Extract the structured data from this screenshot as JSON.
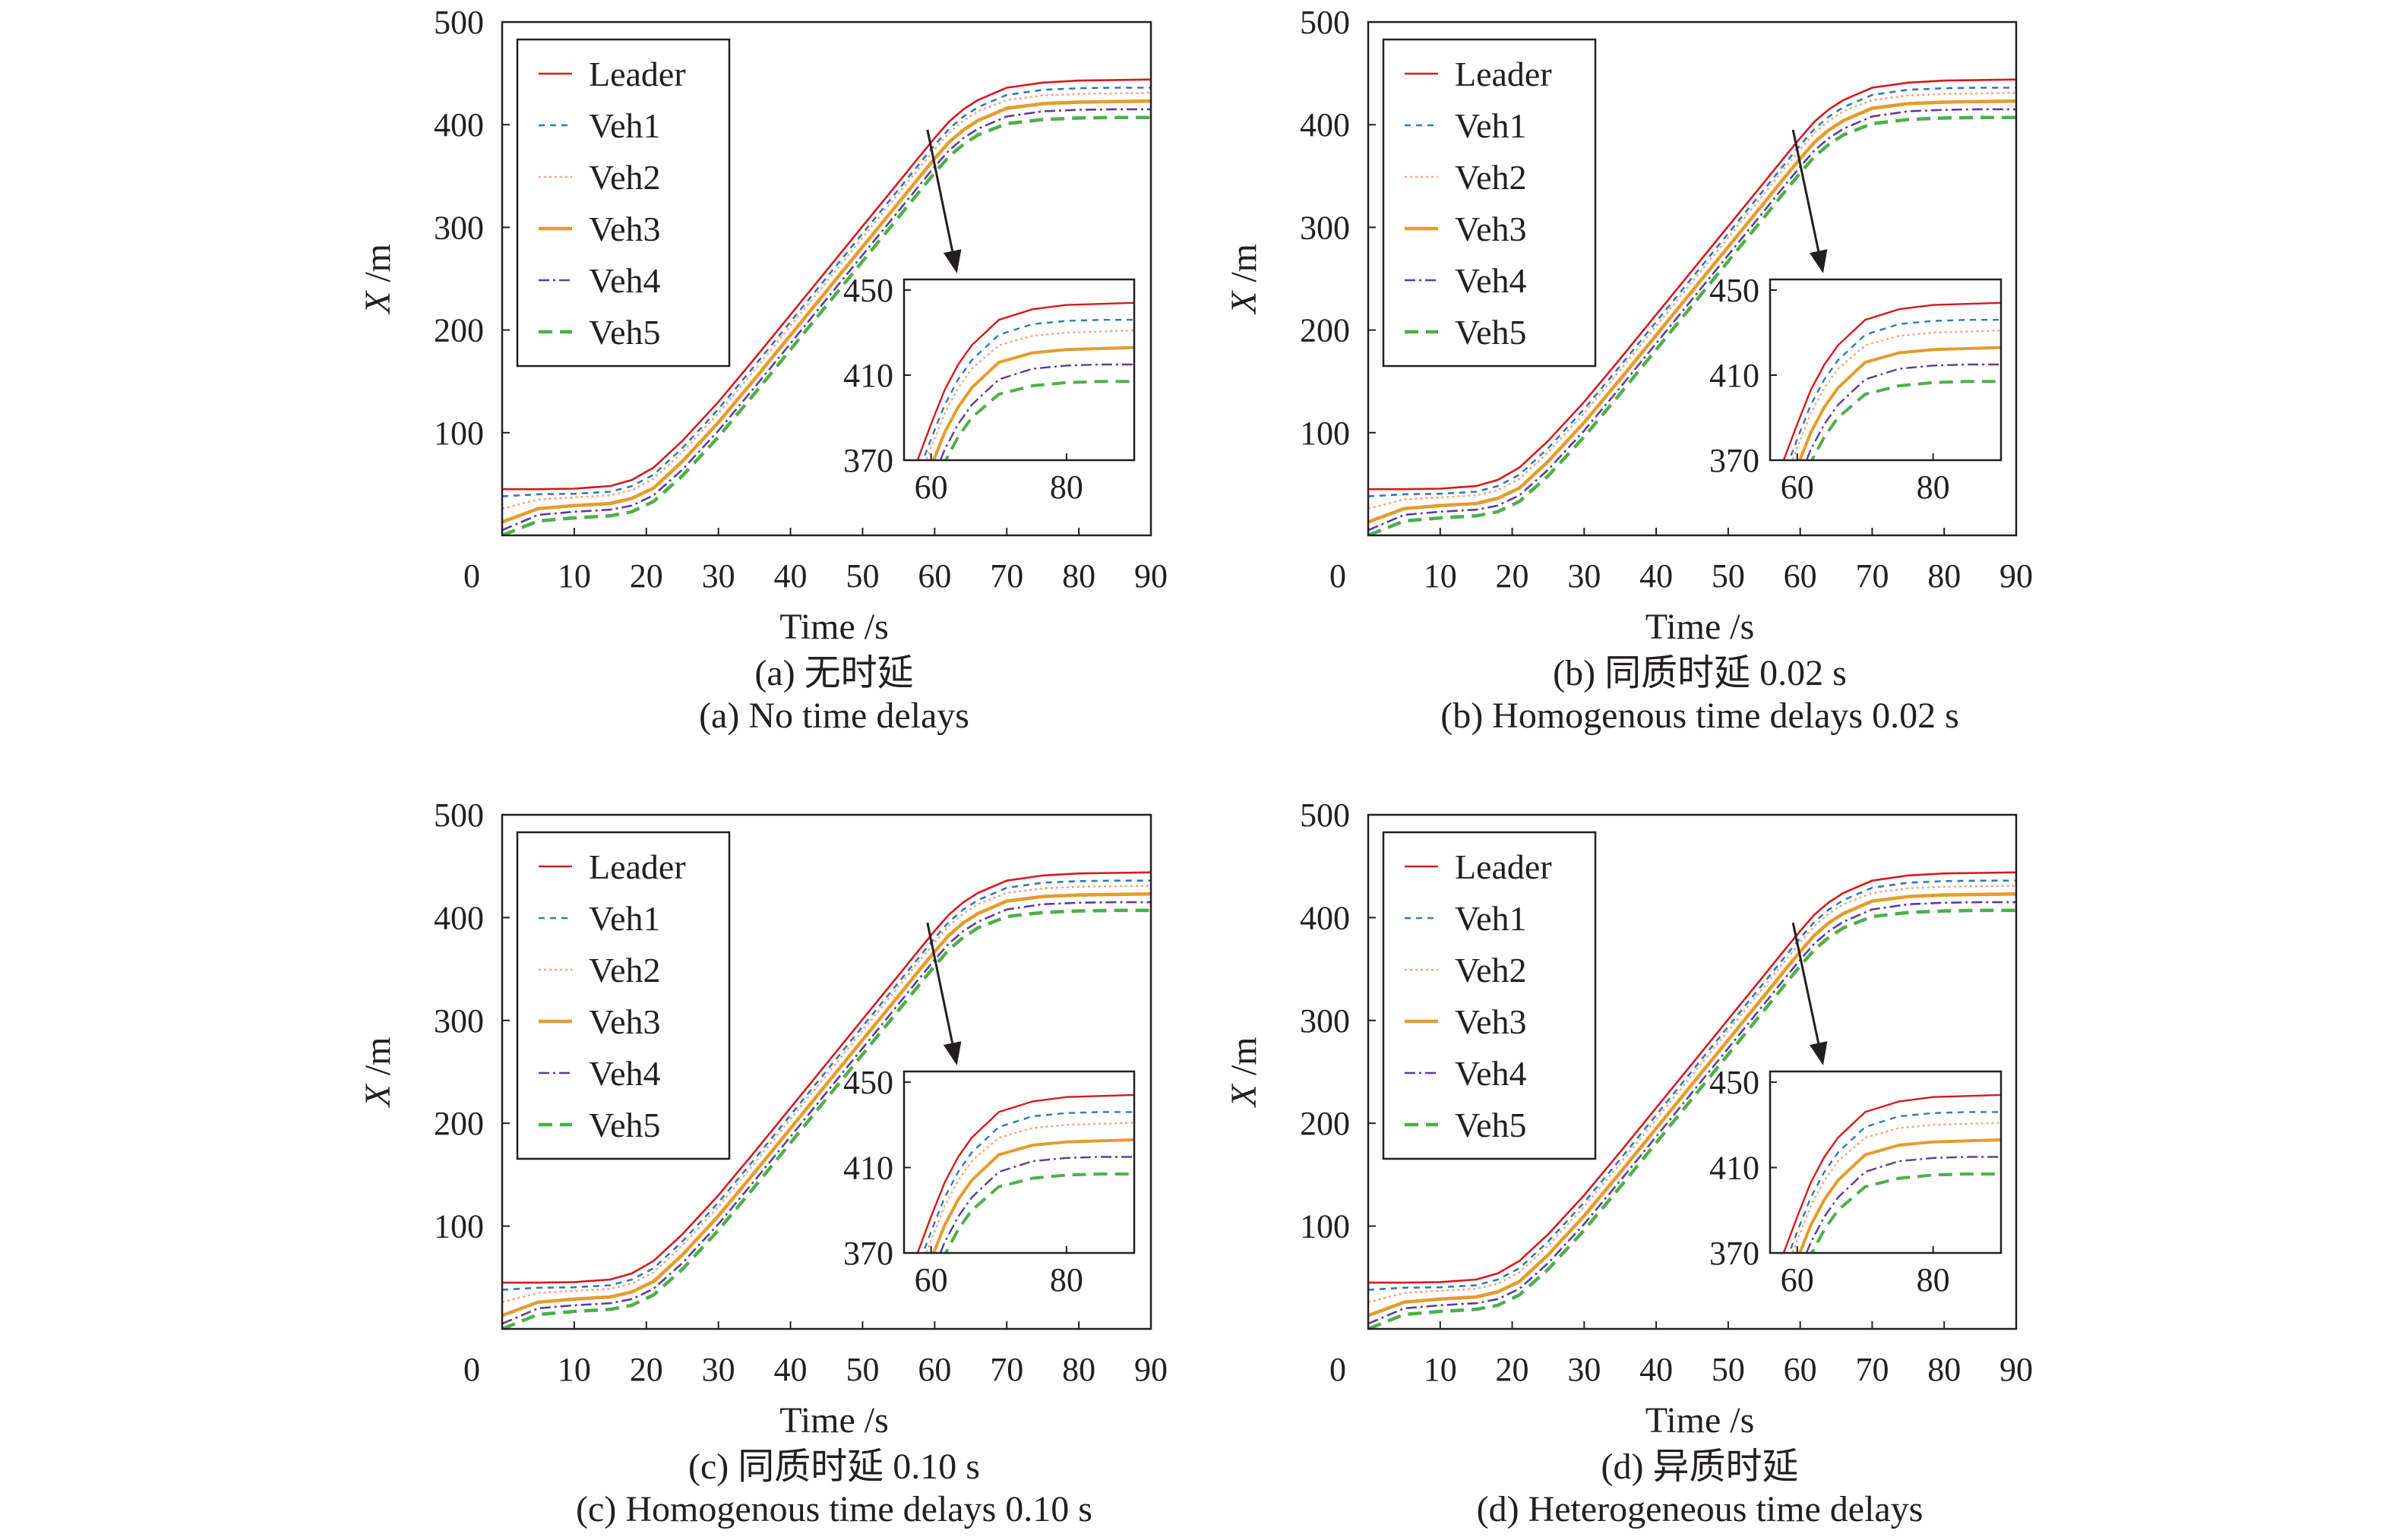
{
  "series_styles": [
    {
      "name": "Leader",
      "color": "#d7191c",
      "dash": ""
    },
    {
      "name": "Veh1",
      "color": "#2c7bb6",
      "dash": "8,7"
    },
    {
      "name": "Veh2",
      "color": "#f4a582",
      "dash": "3,4"
    },
    {
      "name": "Veh3",
      "color": "#e69b2c",
      "dash": ""
    },
    {
      "name": "Veh4",
      "color": "#5e3c99",
      "dash": "14,5,3,5"
    },
    {
      "name": "Veh5",
      "color": "#4daf4a",
      "dash": "18,10"
    }
  ],
  "chart_data": [
    {
      "type": "line",
      "caption_cn": "(a) 无时延",
      "caption_en": "(a) No time delays",
      "xlabel_var": "Time",
      "xlabel_unit": "/s",
      "ylabel_var": "X",
      "ylabel_unit": "/m",
      "xlim": [
        0,
        90
      ],
      "ylim": [
        0,
        500
      ],
      "xticks": [
        "0",
        "10",
        "20",
        "30",
        "40",
        "50",
        "60",
        "70",
        "80",
        "90"
      ],
      "yticks": [
        "100",
        "200",
        "300",
        "400",
        "500"
      ],
      "legend": [
        "Leader",
        "Veh1",
        "Veh2",
        "Veh3",
        "Veh4",
        "Veh5"
      ],
      "legend_position": "top-left",
      "x": [
        0,
        5,
        10,
        15,
        18,
        21,
        25,
        30,
        35,
        40,
        45,
        50,
        55,
        58,
        60,
        62,
        64,
        66,
        70,
        75,
        80,
        85,
        90
      ],
      "series": [
        {
          "name": "Leader",
          "values": [
            45,
            45,
            45.5,
            48,
            54,
            66,
            92,
            130,
            172,
            215,
            258,
            301,
            344,
            370,
            387,
            403,
            415,
            424,
            436,
            441,
            443,
            443.5,
            444
          ]
        },
        {
          "name": "Veh1",
          "values": [
            38,
            40,
            40.5,
            42.5,
            48,
            59,
            85,
            123,
            165,
            208,
            251,
            294,
            337,
            363,
            380,
            396,
            408,
            417,
            429,
            434,
            435.5,
            436,
            436
          ]
        },
        {
          "name": "Veh2",
          "values": [
            26,
            35,
            37,
            39,
            44,
            55,
            81,
            119,
            161,
            204,
            247,
            290,
            333,
            359,
            376,
            392,
            404,
            413,
            424,
            428.5,
            430,
            430.5,
            431
          ]
        },
        {
          "name": "Veh3",
          "values": [
            13,
            26,
            29,
            31,
            36,
            46,
            72,
            110,
            152,
            195,
            238,
            281,
            324,
            350,
            367,
            383,
            395,
            404,
            416,
            420.5,
            422,
            422.5,
            423
          ]
        },
        {
          "name": "Veh4",
          "values": [
            5,
            20,
            23,
            25,
            29,
            39,
            64,
            102,
            144,
            187,
            230,
            273,
            316,
            342,
            359,
            375,
            387,
            396,
            408,
            413,
            414.5,
            415,
            415
          ]
        },
        {
          "name": "Veh5",
          "values": [
            0,
            14,
            17,
            19,
            23,
            33,
            58,
            96,
            138,
            181,
            224,
            267,
            310,
            336,
            353,
            369,
            381,
            390,
            401,
            405,
            406.5,
            407,
            407
          ]
        }
      ],
      "inset": {
        "xlim": [
          56,
          90
        ],
        "ylim": [
          370,
          455
        ],
        "xticks": [
          "60",
          "80"
        ],
        "yticks": [
          "370",
          "410",
          "450"
        ]
      }
    },
    {
      "type": "line",
      "caption_cn": "(b) 同质时延 0.02 s",
      "caption_en": "(b) Homogenous time delays 0.02 s",
      "xlabel_var": "Time",
      "xlabel_unit": "/s",
      "ylabel_var": "X",
      "ylabel_unit": "/m",
      "xlim": [
        0,
        90
      ],
      "ylim": [
        0,
        500
      ],
      "xticks": [
        "0",
        "10",
        "20",
        "30",
        "40",
        "50",
        "60",
        "70",
        "80",
        "90"
      ],
      "yticks": [
        "100",
        "200",
        "300",
        "400",
        "500"
      ],
      "legend": [
        "Leader",
        "Veh1",
        "Veh2",
        "Veh3",
        "Veh4",
        "Veh5"
      ],
      "legend_position": "top-left",
      "x": [
        0,
        5,
        10,
        15,
        18,
        21,
        25,
        30,
        35,
        40,
        45,
        50,
        55,
        58,
        60,
        62,
        64,
        66,
        70,
        75,
        80,
        85,
        90
      ],
      "series": [
        {
          "name": "Leader",
          "values": [
            45,
            45,
            45.5,
            48,
            54,
            66,
            92,
            130,
            172,
            215,
            258,
            301,
            344,
            370,
            387,
            403,
            415,
            424,
            436,
            441,
            443,
            443.5,
            444
          ]
        },
        {
          "name": "Veh1",
          "values": [
            38,
            40,
            40.5,
            42.5,
            48,
            59,
            85,
            123,
            165,
            208,
            251,
            294,
            337,
            363,
            380,
            396,
            408,
            417,
            429,
            434,
            435.5,
            436,
            436
          ]
        },
        {
          "name": "Veh2",
          "values": [
            26,
            35,
            37,
            39,
            44,
            55,
            81,
            119,
            161,
            204,
            247,
            290,
            333,
            359,
            376,
            392,
            404,
            413,
            424,
            428.5,
            430,
            430.5,
            431
          ]
        },
        {
          "name": "Veh3",
          "values": [
            13,
            26,
            29,
            31,
            36,
            46,
            72,
            110,
            152,
            195,
            238,
            281,
            324,
            350,
            367,
            383,
            395,
            404,
            416,
            420.5,
            422,
            422.5,
            423
          ]
        },
        {
          "name": "Veh4",
          "values": [
            5,
            20,
            23,
            25,
            29,
            39,
            64,
            102,
            144,
            187,
            230,
            273,
            316,
            342,
            359,
            375,
            387,
            396,
            408,
            413,
            414.5,
            415,
            415
          ]
        },
        {
          "name": "Veh5",
          "values": [
            0,
            14,
            17,
            19,
            23,
            33,
            58,
            96,
            138,
            181,
            224,
            267,
            310,
            336,
            353,
            369,
            381,
            390,
            401,
            405,
            406.5,
            407,
            407
          ]
        }
      ],
      "inset": {
        "xlim": [
          56,
          90
        ],
        "ylim": [
          370,
          455
        ],
        "xticks": [
          "60",
          "80"
        ],
        "yticks": [
          "370",
          "410",
          "450"
        ]
      }
    },
    {
      "type": "line",
      "caption_cn": "(c) 同质时延 0.10 s",
      "caption_en": "(c) Homogenous time delays 0.10 s",
      "xlabel_var": "Time",
      "xlabel_unit": "/s",
      "ylabel_var": "X",
      "ylabel_unit": "/m",
      "xlim": [
        0,
        90
      ],
      "ylim": [
        0,
        500
      ],
      "xticks": [
        "0",
        "10",
        "20",
        "30",
        "40",
        "50",
        "60",
        "70",
        "80",
        "90"
      ],
      "yticks": [
        "100",
        "200",
        "300",
        "400",
        "500"
      ],
      "legend": [
        "Leader",
        "Veh1",
        "Veh2",
        "Veh3",
        "Veh4",
        "Veh5"
      ],
      "legend_position": "top-left",
      "x": [
        0,
        5,
        10,
        15,
        18,
        21,
        25,
        30,
        35,
        40,
        45,
        50,
        55,
        58,
        60,
        62,
        64,
        66,
        70,
        75,
        80,
        85,
        90
      ],
      "series": [
        {
          "name": "Leader",
          "values": [
            45,
            45,
            45.5,
            48,
            54,
            66,
            92,
            130,
            172,
            215,
            258,
            301,
            344,
            370,
            387,
            403,
            415,
            424,
            436,
            441,
            443,
            443.5,
            444
          ]
        },
        {
          "name": "Veh1",
          "values": [
            38,
            40,
            40.5,
            42.5,
            48,
            59,
            85,
            123,
            165,
            208,
            251,
            294,
            337,
            363,
            380,
            396,
            408,
            417,
            429,
            434,
            435.5,
            436,
            436
          ]
        },
        {
          "name": "Veh2",
          "values": [
            26,
            35,
            37,
            39,
            44,
            55,
            81,
            119,
            161,
            204,
            247,
            290,
            333,
            359,
            376,
            392,
            404,
            413,
            424,
            428.5,
            430,
            430.5,
            431
          ]
        },
        {
          "name": "Veh3",
          "values": [
            13,
            26,
            29,
            31,
            36,
            46,
            72,
            110,
            152,
            195,
            238,
            281,
            324,
            350,
            367,
            383,
            395,
            404,
            416,
            420.5,
            422,
            422.5,
            423
          ]
        },
        {
          "name": "Veh4",
          "values": [
            5,
            20,
            23,
            25,
            29,
            39,
            64,
            102,
            144,
            187,
            230,
            273,
            316,
            342,
            359,
            375,
            387,
            396,
            408,
            413,
            414.5,
            415,
            415
          ]
        },
        {
          "name": "Veh5",
          "values": [
            0,
            14,
            17,
            19,
            23,
            33,
            58,
            96,
            138,
            181,
            224,
            267,
            310,
            336,
            353,
            369,
            381,
            390,
            401,
            405,
            406.5,
            407,
            407
          ]
        }
      ],
      "inset": {
        "xlim": [
          56,
          90
        ],
        "ylim": [
          370,
          455
        ],
        "xticks": [
          "60",
          "80"
        ],
        "yticks": [
          "370",
          "410",
          "450"
        ]
      }
    },
    {
      "type": "line",
      "caption_cn": "(d) 异质时延",
      "caption_en": "(d) Heterogeneous time delays",
      "xlabel_var": "Time",
      "xlabel_unit": "/s",
      "ylabel_var": "X",
      "ylabel_unit": "/m",
      "xlim": [
        0,
        90
      ],
      "ylim": [
        0,
        500
      ],
      "xticks": [
        "0",
        "10",
        "20",
        "30",
        "40",
        "50",
        "60",
        "70",
        "80",
        "90"
      ],
      "yticks": [
        "100",
        "200",
        "300",
        "400",
        "500"
      ],
      "legend": [
        "Leader",
        "Veh1",
        "Veh2",
        "Veh3",
        "Veh4",
        "Veh5"
      ],
      "legend_position": "top-left",
      "x": [
        0,
        5,
        10,
        15,
        18,
        21,
        25,
        30,
        35,
        40,
        45,
        50,
        55,
        58,
        60,
        62,
        64,
        66,
        70,
        75,
        80,
        85,
        90
      ],
      "series": [
        {
          "name": "Leader",
          "values": [
            45,
            45,
            45.5,
            48,
            54,
            66,
            92,
            130,
            172,
            215,
            258,
            301,
            344,
            370,
            387,
            403,
            415,
            424,
            436,
            441,
            443,
            443.5,
            444
          ]
        },
        {
          "name": "Veh1",
          "values": [
            38,
            40,
            40.5,
            42.5,
            48,
            59,
            85,
            123,
            165,
            208,
            251,
            294,
            337,
            363,
            380,
            396,
            408,
            417,
            429,
            434,
            435.5,
            436,
            436
          ]
        },
        {
          "name": "Veh2",
          "values": [
            26,
            35,
            37,
            39,
            44,
            55,
            81,
            119,
            161,
            204,
            247,
            290,
            333,
            359,
            376,
            392,
            404,
            413,
            424,
            428.5,
            430,
            430.5,
            431
          ]
        },
        {
          "name": "Veh3",
          "values": [
            13,
            26,
            29,
            31,
            36,
            46,
            72,
            110,
            152,
            195,
            238,
            281,
            324,
            350,
            367,
            383,
            395,
            404,
            416,
            420.5,
            422,
            422.5,
            423
          ]
        },
        {
          "name": "Veh4",
          "values": [
            5,
            20,
            23,
            25,
            29,
            39,
            64,
            102,
            144,
            187,
            230,
            273,
            316,
            342,
            359,
            375,
            387,
            396,
            408,
            413,
            414.5,
            415,
            415
          ]
        },
        {
          "name": "Veh5",
          "values": [
            0,
            14,
            17,
            19,
            23,
            33,
            58,
            96,
            138,
            181,
            224,
            267,
            310,
            336,
            353,
            369,
            381,
            390,
            401,
            405,
            406.5,
            407,
            407
          ]
        }
      ],
      "inset": {
        "xlim": [
          56,
          90
        ],
        "ylim": [
          370,
          455
        ],
        "xticks": [
          "60",
          "80"
        ],
        "yticks": [
          "370",
          "410",
          "450"
        ]
      }
    }
  ]
}
